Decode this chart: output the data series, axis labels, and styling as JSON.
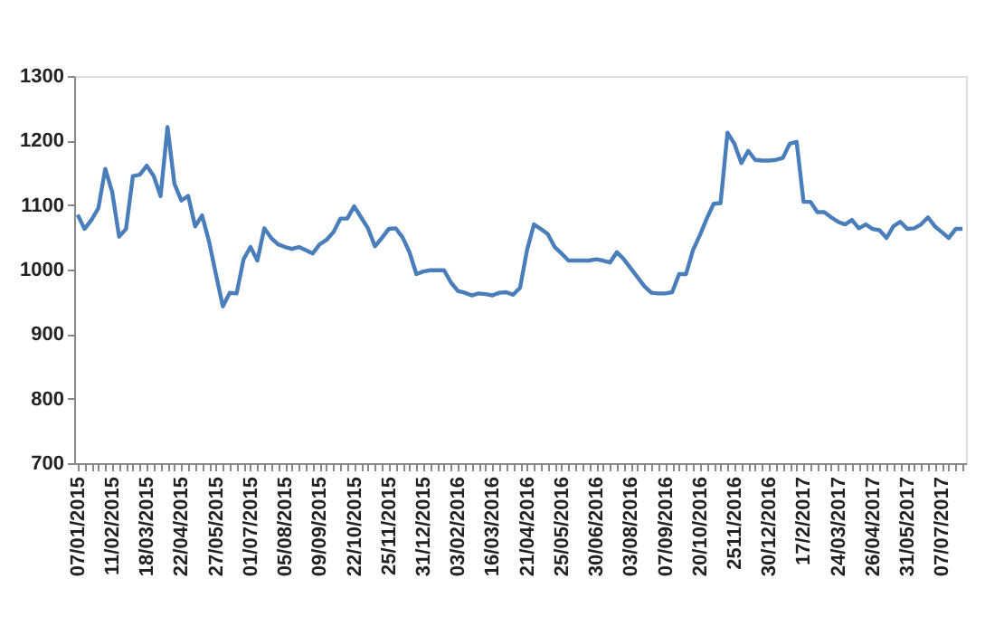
{
  "chart_data": {
    "type": "line",
    "categories": [
      "07/01/2015",
      null,
      null,
      null,
      null,
      "11/02/2015",
      null,
      null,
      null,
      null,
      "18/03/2015",
      null,
      null,
      null,
      null,
      "22/04/2015",
      null,
      null,
      null,
      null,
      "27/05/2015",
      null,
      null,
      null,
      null,
      "01/07/2015",
      null,
      null,
      null,
      null,
      "05/08/2015",
      null,
      null,
      null,
      null,
      "09/09/2015",
      null,
      null,
      null,
      null,
      "22/10/2015",
      null,
      null,
      null,
      null,
      "25/11/2015",
      null,
      null,
      null,
      null,
      "31/12/2015",
      null,
      null,
      null,
      null,
      "03/02/2016",
      null,
      null,
      null,
      null,
      "16/03/2016",
      null,
      null,
      null,
      null,
      "21/04/2016",
      null,
      null,
      null,
      null,
      "25/05/2016",
      null,
      null,
      null,
      null,
      "30/06/2016",
      null,
      null,
      null,
      null,
      "03/08/2016",
      null,
      null,
      null,
      null,
      "07/09/2016",
      null,
      null,
      null,
      null,
      "20/10/2016",
      null,
      null,
      null,
      null,
      "2511/2016",
      null,
      null,
      null,
      null,
      "30/12/2016",
      null,
      null,
      null,
      null,
      "17/2/2017",
      null,
      null,
      null,
      null,
      "24/03/2017",
      null,
      null,
      null,
      null,
      "26/04/2017",
      null,
      null,
      null,
      null,
      "31/05/2017",
      null,
      null,
      null,
      null,
      "07/07/2017",
      null,
      null,
      null
    ],
    "series": [
      {
        "color": "#4a7ebb",
        "values": [
          1085,
          1063,
          1077,
          1095,
          1156,
          1120,
          1051,
          1063,
          1145,
          1147,
          1161,
          1145,
          1114,
          1221,
          1133,
          1107,
          1114,
          1067,
          1084,
          1044,
          993,
          943,
          964,
          963,
          1016,
          1035,
          1014,
          1064,
          1049,
          1039,
          1035,
          1032,
          1035,
          1030,
          1025,
          1039,
          1046,
          1058,
          1079,
          1079,
          1098,
          1081,
          1064,
          1036,
          1049,
          1063,
          1064,
          1050,
          1027,
          993,
          997,
          999,
          999,
          999,
          980,
          967,
          964,
          960,
          963,
          962,
          960,
          964,
          965,
          961,
          972,
          1030,
          1070,
          1063,
          1055,
          1035,
          1025,
          1014,
          1014,
          1014,
          1014,
          1016,
          1014,
          1011,
          1027,
          1016,
          1002,
          988,
          974,
          964,
          963,
          963,
          965,
          993,
          993,
          1030,
          1053,
          1079,
          1102,
          1103,
          1212,
          1195,
          1165,
          1184,
          1170,
          1169,
          1169,
          1170,
          1173,
          1195,
          1198,
          1105,
          1105,
          1089,
          1089,
          1081,
          1074,
          1070,
          1077,
          1064,
          1070,
          1063,
          1061,
          1049,
          1067,
          1074,
          1063,
          1064,
          1070,
          1081,
          1067,
          1058,
          1049,
          1063,
          1063
        ]
      }
    ],
    "ylim": [
      700,
      1300
    ],
    "yticks": [
      700,
      800,
      900,
      1000,
      1100,
      1200,
      1300
    ],
    "grid": false,
    "legend": false,
    "marker": "none",
    "line_style": "solid"
  }
}
